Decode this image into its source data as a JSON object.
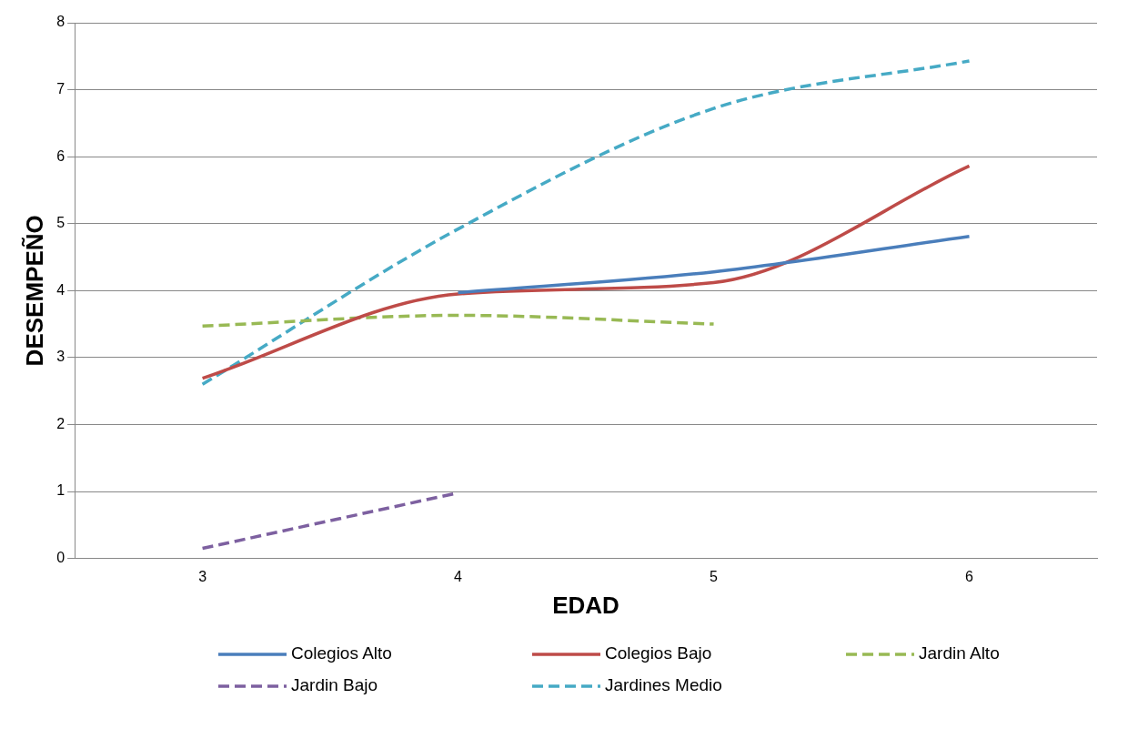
{
  "chart_data": {
    "type": "line",
    "xlabel": "EDAD",
    "ylabel": "DESEMPEÑO",
    "categories": [
      "3",
      "4",
      "5",
      "6"
    ],
    "ylim": [
      0,
      8
    ],
    "yticks": [
      0,
      1,
      2,
      3,
      4,
      5,
      6,
      7,
      8
    ],
    "grid": "y",
    "legend": "bottom",
    "marker": "none",
    "series": [
      {
        "name": "Colegios Alto",
        "color": "#4a7ebb",
        "line_style": "solid",
        "values": [
          null,
          3.97,
          4.28,
          4.81
        ]
      },
      {
        "name": "Colegios Bajo",
        "color": "#be4b48",
        "line_style": "solid",
        "values": [
          2.69,
          3.95,
          4.12,
          5.86
        ]
      },
      {
        "name": "Jardin Alto",
        "color": "#98b954",
        "line_style": "dashed",
        "values": [
          3.47,
          3.63,
          3.5,
          null
        ]
      },
      {
        "name": "Jardin Bajo",
        "color": "#7d60a0",
        "line_style": "dashed",
        "values": [
          0.15,
          0.98,
          null,
          null
        ]
      },
      {
        "name": "Jardines Medio",
        "color": "#46aac5",
        "line_style": "dashed",
        "values": [
          2.6,
          4.92,
          6.72,
          7.43
        ]
      }
    ]
  }
}
